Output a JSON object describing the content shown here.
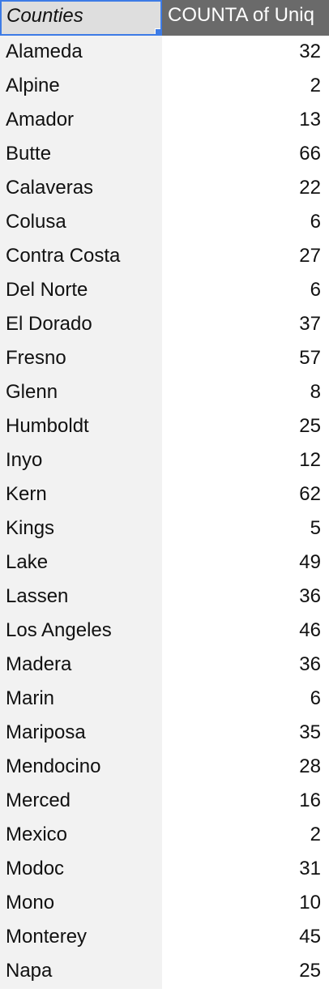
{
  "header": {
    "col_a": "Counties",
    "col_b": "COUNTA of Uniq"
  },
  "rows": [
    {
      "county": "Alameda",
      "count": "32"
    },
    {
      "county": "Alpine",
      "count": "2"
    },
    {
      "county": "Amador",
      "count": "13"
    },
    {
      "county": "Butte",
      "count": "66"
    },
    {
      "county": "Calaveras",
      "count": "22"
    },
    {
      "county": "Colusa",
      "count": "6"
    },
    {
      "county": "Contra Costa",
      "count": "27"
    },
    {
      "county": "Del Norte",
      "count": "6"
    },
    {
      "county": "El Dorado",
      "count": "37"
    },
    {
      "county": "Fresno",
      "count": "57"
    },
    {
      "county": "Glenn",
      "count": "8"
    },
    {
      "county": "Humboldt",
      "count": "25"
    },
    {
      "county": "Inyo",
      "count": "12"
    },
    {
      "county": "Kern",
      "count": "62"
    },
    {
      "county": "Kings",
      "count": "5"
    },
    {
      "county": "Lake",
      "count": "49"
    },
    {
      "county": "Lassen",
      "count": "36"
    },
    {
      "county": "Los Angeles",
      "count": "46"
    },
    {
      "county": "Madera",
      "count": "36"
    },
    {
      "county": "Marin",
      "count": "6"
    },
    {
      "county": "Mariposa",
      "count": "35"
    },
    {
      "county": "Mendocino",
      "count": "28"
    },
    {
      "county": "Merced",
      "count": "16"
    },
    {
      "county": "Mexico",
      "count": "2"
    },
    {
      "county": "Modoc",
      "count": "31"
    },
    {
      "county": "Mono",
      "count": "10"
    },
    {
      "county": "Monterey",
      "count": "45"
    },
    {
      "county": "Napa",
      "count": "25"
    }
  ],
  "colors": {
    "selection_border": "#3d7be6",
    "header_value_bg": "#6a6a6a",
    "row_label_bg": "#f2f2f2"
  }
}
